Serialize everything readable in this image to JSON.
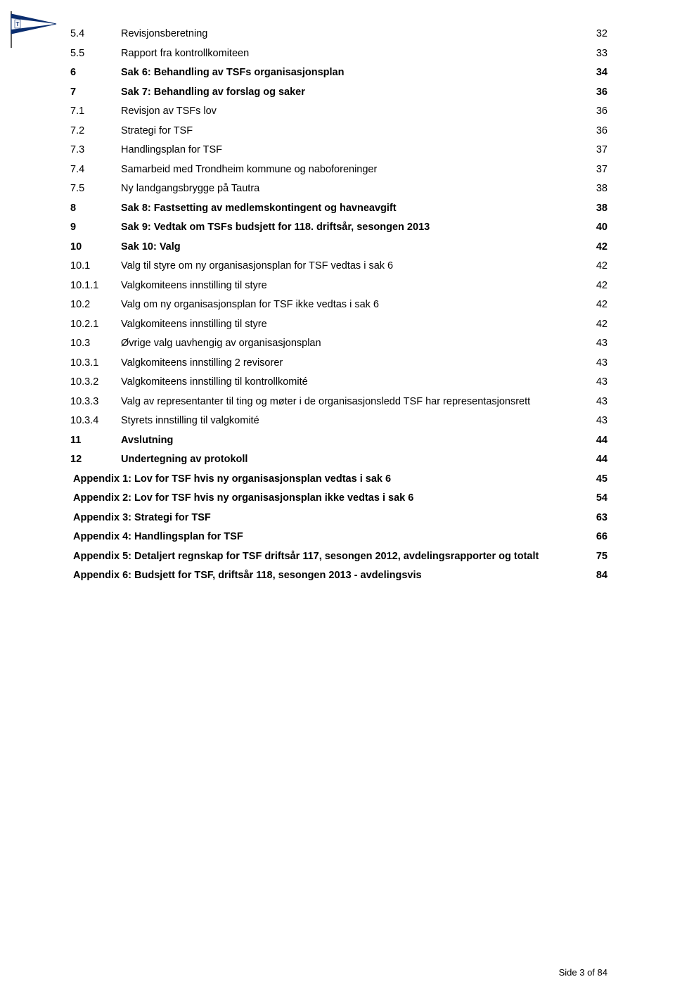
{
  "toc": [
    {
      "num": "5.4",
      "title": "Revisjonsberetning",
      "page": "32",
      "bold": false,
      "appendix": false
    },
    {
      "num": "5.5",
      "title": "Rapport fra kontrollkomiteen",
      "page": "33",
      "bold": false,
      "appendix": false
    },
    {
      "num": "6",
      "title": "Sak 6: Behandling av TSFs organisasjonsplan",
      "page": "34",
      "bold": true,
      "appendix": false
    },
    {
      "num": "7",
      "title": "Sak 7: Behandling av forslag og saker",
      "page": "36",
      "bold": true,
      "appendix": false
    },
    {
      "num": "7.1",
      "title": "Revisjon av TSFs lov",
      "page": "36",
      "bold": false,
      "appendix": false
    },
    {
      "num": "7.2",
      "title": "Strategi for TSF",
      "page": "36",
      "bold": false,
      "appendix": false
    },
    {
      "num": "7.3",
      "title": "Handlingsplan for TSF",
      "page": "37",
      "bold": false,
      "appendix": false
    },
    {
      "num": "7.4",
      "title": "Samarbeid med Trondheim kommune og naboforeninger",
      "page": "37",
      "bold": false,
      "appendix": false
    },
    {
      "num": "7.5",
      "title": "Ny landgangsbrygge på Tautra",
      "page": "38",
      "bold": false,
      "appendix": false
    },
    {
      "num": "8",
      "title": "Sak 8: Fastsetting av medlemskontingent og havneavgift",
      "page": "38",
      "bold": true,
      "appendix": false
    },
    {
      "num": "9",
      "title": "Sak 9: Vedtak om TSFs budsjett for 118. driftsår, sesongen 2013",
      "page": "40",
      "bold": true,
      "appendix": false
    },
    {
      "num": "10",
      "title": "Sak 10: Valg",
      "page": "42",
      "bold": true,
      "appendix": false
    },
    {
      "num": "10.1",
      "title": "Valg til styre om ny organisasjonsplan for TSF vedtas i sak 6",
      "page": "42",
      "bold": false,
      "appendix": false
    },
    {
      "num": "10.1.1",
      "title": "Valgkomiteens innstilling til styre",
      "page": "42",
      "bold": false,
      "appendix": false
    },
    {
      "num": "10.2",
      "title": "Valg om ny organisasjonsplan for TSF ikke vedtas i sak 6",
      "page": "42",
      "bold": false,
      "appendix": false
    },
    {
      "num": "10.2.1",
      "title": "Valgkomiteens innstilling til styre",
      "page": "42",
      "bold": false,
      "appendix": false
    },
    {
      "num": "10.3",
      "title": "Øvrige valg uavhengig av organisasjonsplan",
      "page": "43",
      "bold": false,
      "appendix": false
    },
    {
      "num": "10.3.1",
      "title": "Valgkomiteens innstilling 2 revisorer",
      "page": "43",
      "bold": false,
      "appendix": false
    },
    {
      "num": "10.3.2",
      "title": "Valgkomiteens innstilling til kontrollkomité",
      "page": "43",
      "bold": false,
      "appendix": false
    },
    {
      "num": "10.3.3",
      "title": "Valg av representanter til ting og møter i de organisasjonsledd TSF har representasjonsrett",
      "page": "43",
      "bold": false,
      "appendix": false
    },
    {
      "num": "10.3.4",
      "title": "Styrets innstilling til valgkomité",
      "page": "43",
      "bold": false,
      "appendix": false
    },
    {
      "num": "11",
      "title": "Avslutning",
      "page": "44",
      "bold": true,
      "appendix": false
    },
    {
      "num": "12",
      "title": "Undertegning av protokoll",
      "page": "44",
      "bold": true,
      "appendix": false
    },
    {
      "num": "",
      "title": "Appendix 1: Lov for TSF hvis ny organisasjonsplan vedtas i sak 6",
      "page": "45",
      "bold": true,
      "appendix": true
    },
    {
      "num": "",
      "title": "Appendix 2: Lov for TSF hvis ny organisasjonsplan ikke vedtas i sak 6",
      "page": "54",
      "bold": true,
      "appendix": true
    },
    {
      "num": "",
      "title": "Appendix 3: Strategi for TSF",
      "page": "63",
      "bold": true,
      "appendix": true
    },
    {
      "num": "",
      "title": "Appendix 4: Handlingsplan for TSF",
      "page": "66",
      "bold": true,
      "appendix": true
    },
    {
      "num": "",
      "title": "Appendix 5: Detaljert regnskap for TSF driftsår 117, sesongen 2012, avdelingsrapporter og totalt",
      "page": "75",
      "bold": true,
      "appendix": true
    },
    {
      "num": "",
      "title": "Appendix 6: Budsjett for TSF, driftsår 118, sesongen 2013 - avdelingsvis",
      "page": "84",
      "bold": true,
      "appendix": true
    }
  ],
  "footer": "Side 3 of 84",
  "logo": {
    "flag_blue": "#0b2e6f",
    "pole_gray": "#5a5a5a",
    "letter": "T"
  }
}
